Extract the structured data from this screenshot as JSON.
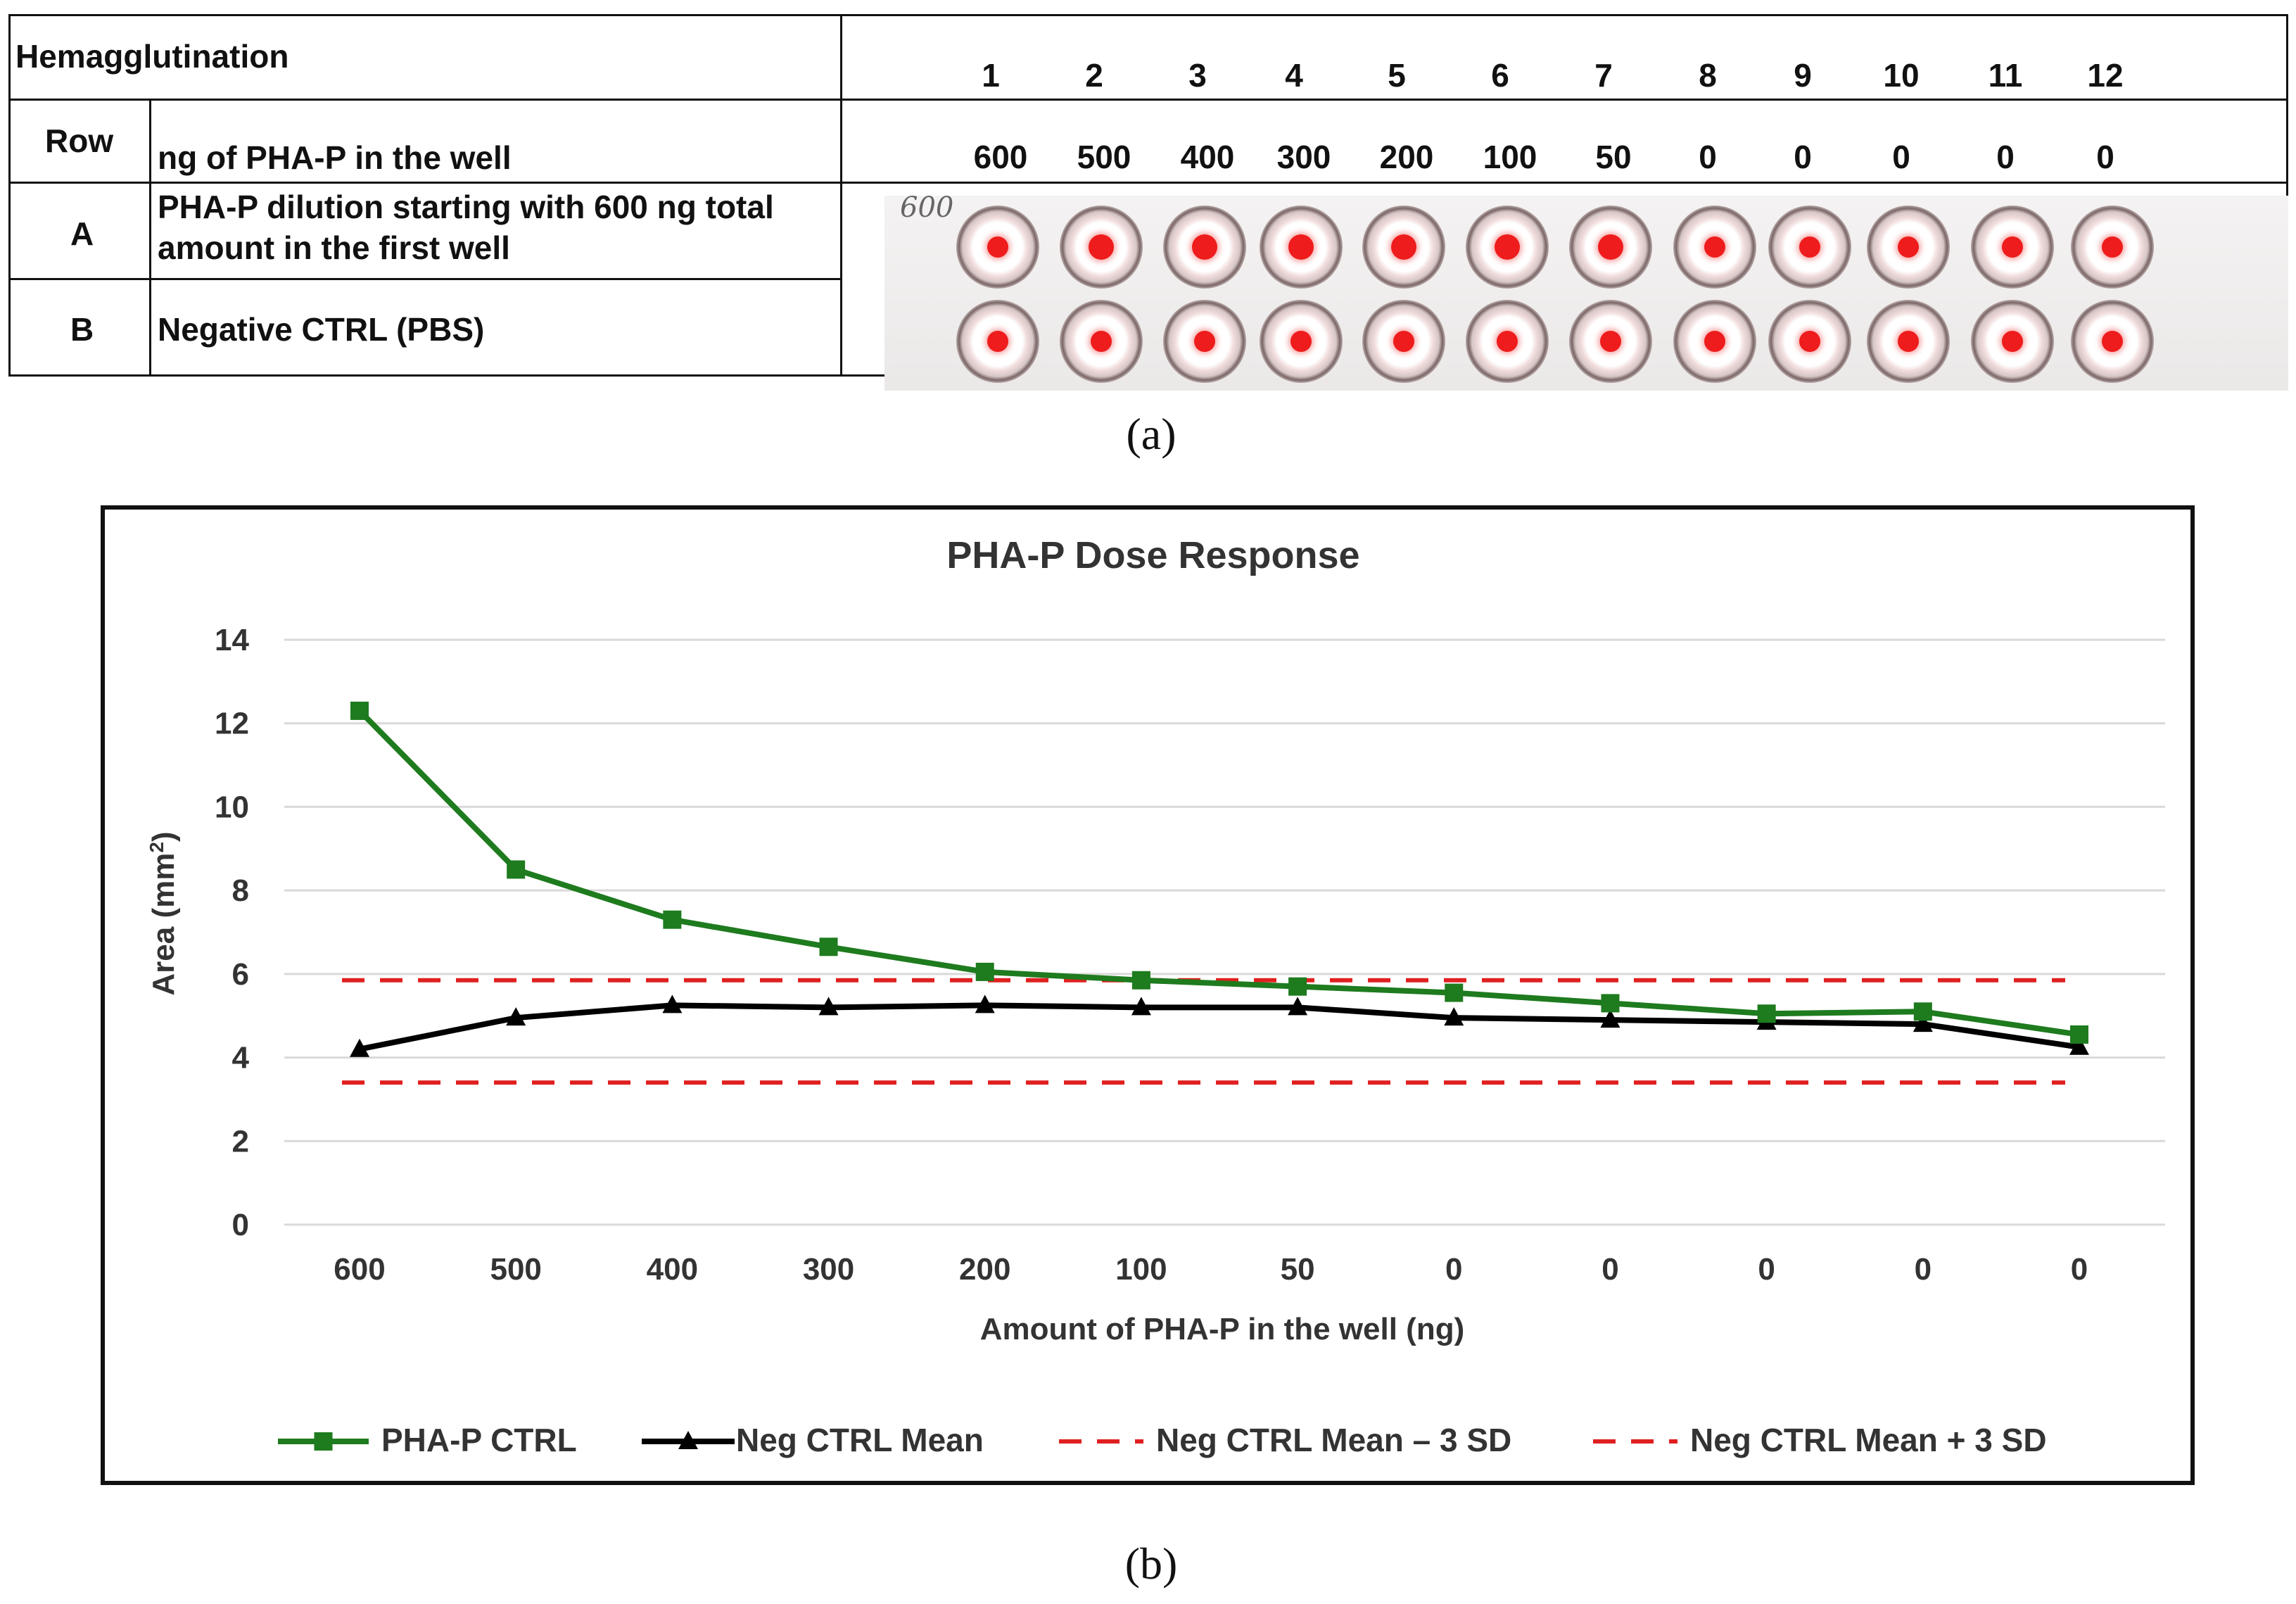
{
  "panel_a": {
    "header_title": "Hemagglutination",
    "row_header": "Row",
    "ng_header": "ng of PHA-P in the well",
    "column_numbers": [
      "1",
      "2",
      "3",
      "4",
      "5",
      "6",
      "7",
      "8",
      "9",
      "10",
      "11",
      "12"
    ],
    "ng_values": [
      "600",
      "500",
      "400",
      "300",
      "200",
      "100",
      "50",
      "0",
      "0",
      "0",
      "0",
      "0"
    ],
    "rows": [
      {
        "label": "A",
        "description": "PHA-P dilution starting with 600 ng total amount in the first well"
      },
      {
        "label": "B",
        "description": "Negative CTRL (PBS)"
      }
    ],
    "photo_note": "600",
    "caption": "(a)"
  },
  "panel_b": {
    "caption": "(b)"
  },
  "chart_data": {
    "type": "line",
    "title": "PHA-P Dose Response",
    "xlabel": "Amount of PHA-P in the well (ng)",
    "ylabel": "Area (mm²)",
    "ylabel_base": "Area (mm",
    "ylabel_sup": "2",
    "ylabel_close": ")",
    "ylim": [
      0,
      14
    ],
    "yticks": [
      0,
      2,
      4,
      6,
      8,
      10,
      12,
      14
    ],
    "grid": true,
    "legend_position": "bottom",
    "categories": [
      "600",
      "500",
      "400",
      "300",
      "200",
      "100",
      "50",
      "0",
      "0",
      "0",
      "0",
      "0"
    ],
    "series": [
      {
        "name": "PHA-P CTRL",
        "color": "#1e7b1e",
        "marker": "square",
        "style": "solid",
        "values": [
          12.3,
          8.5,
          7.3,
          6.65,
          6.05,
          5.85,
          5.7,
          5.55,
          5.3,
          5.05,
          5.1,
          4.55
        ]
      },
      {
        "name": "Neg CTRL Mean",
        "color": "#000000",
        "marker": "triangle",
        "style": "solid",
        "values": [
          4.2,
          4.95,
          5.25,
          5.2,
          5.25,
          5.2,
          5.2,
          4.95,
          4.9,
          4.85,
          4.8,
          4.25
        ]
      },
      {
        "name": "Neg CTRL Mean – 3 SD",
        "color": "#e02020",
        "marker": "none",
        "style": "dashed",
        "values": [
          3.4,
          3.4,
          3.4,
          3.4,
          3.4,
          3.4,
          3.4,
          3.4,
          3.4,
          3.4,
          3.4,
          3.4
        ]
      },
      {
        "name": "Neg CTRL Mean + 3 SD",
        "color": "#e02020",
        "marker": "none",
        "style": "dashed",
        "values": [
          5.85,
          5.85,
          5.85,
          5.85,
          5.85,
          5.85,
          5.85,
          5.85,
          5.85,
          5.85,
          5.85,
          5.85
        ]
      }
    ]
  }
}
